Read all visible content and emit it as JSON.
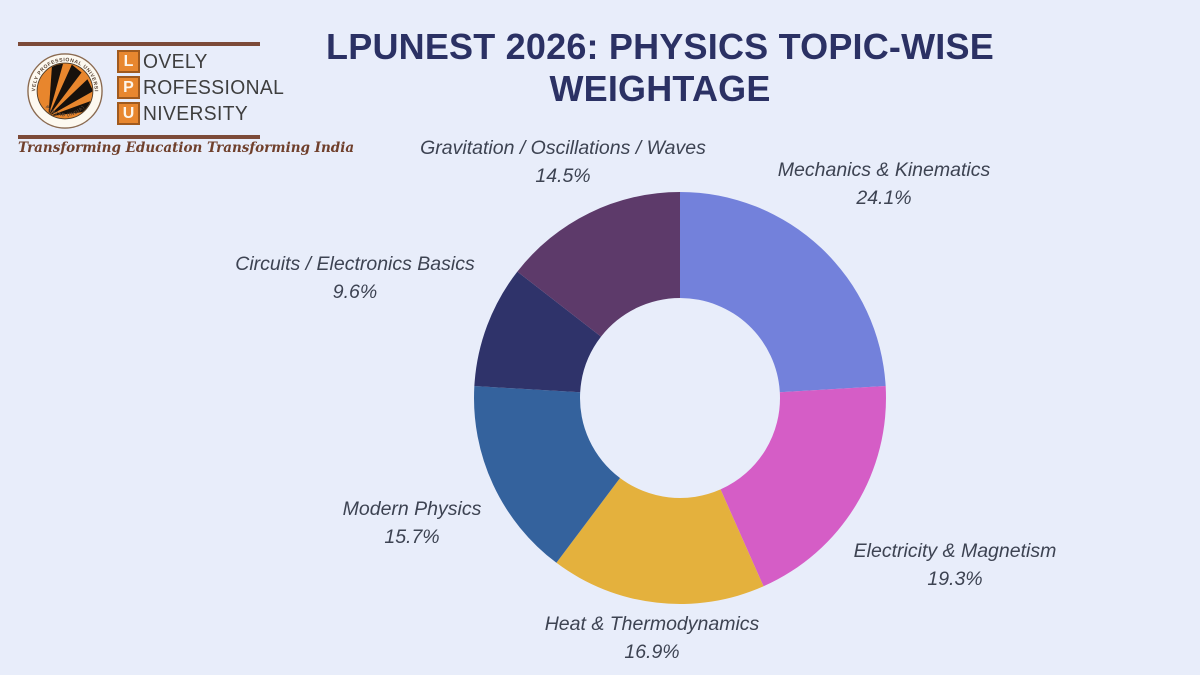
{
  "page": {
    "background": "#e8edfa"
  },
  "logo": {
    "box_letters": [
      "L",
      "P",
      "U"
    ],
    "name_rest": [
      "OVELY",
      "ROFESSIONAL",
      "NIVERSITY"
    ],
    "ring_top": "LOVELY   PROFESSIONAL   UNIVERSITY",
    "ring_bottom": "PUNJAB (INDIA)",
    "tagline": "Transforming Education Transforming India",
    "colors": {
      "orange": "#e8872f",
      "bar": "#7c4a38",
      "name_text": "#3e3e3e",
      "tagline_text": "#70402c"
    }
  },
  "title": {
    "line1": "LPUNEST 2026: PHYSICS TOPIC-WISE",
    "line2": "WEIGHTAGE",
    "color": "#2b3164"
  },
  "chart_data": {
    "type": "pie",
    "variant": "donut",
    "start_angle_deg": 0,
    "direction": "clockwise",
    "legend_position": "outside-labels",
    "label_color": "#3d4352",
    "slices": [
      {
        "label": "Mechanics & Kinematics",
        "value": 24.1,
        "pct_text": "24.1%",
        "color": "#7381db"
      },
      {
        "label": "Electricity & Magnetism",
        "value": 19.3,
        "pct_text": "19.3%",
        "color": "#d55dc6"
      },
      {
        "label": "Heat & Thermodynamics",
        "value": 16.9,
        "pct_text": "16.9%",
        "color": "#e4b13d"
      },
      {
        "label": "Modern Physics",
        "value": 15.7,
        "pct_text": "15.7%",
        "color": "#34629d"
      },
      {
        "label": "Circuits / Electronics Basics",
        "value": 9.6,
        "pct_text": "9.6%",
        "color": "#2f336a"
      },
      {
        "label": "Gravitation / Oscillations / Waves",
        "value": 14.5,
        "pct_text": "14.5%",
        "color": "#5d3a6a"
      }
    ]
  }
}
